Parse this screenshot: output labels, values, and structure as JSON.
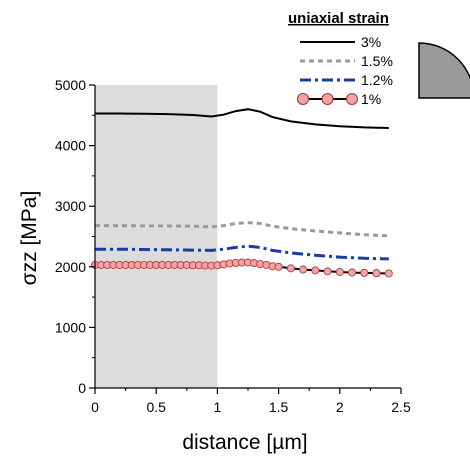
{
  "chart_data": {
    "type": "line",
    "xlabel": "distance [µm]",
    "ylabel": "σzz [MPa]",
    "xlim": [
      0,
      2.5
    ],
    "ylim": [
      0,
      5000
    ],
    "x_ticks": [
      0,
      0.5,
      1,
      1.5,
      2,
      2.5
    ],
    "x_tick_labels": [
      "0",
      "0.5",
      "1",
      "1.5",
      "2",
      "2.5"
    ],
    "y_ticks": [
      0,
      1000,
      2000,
      3000,
      4000,
      5000
    ],
    "y_tick_labels": [
      "0",
      "1000",
      "2000",
      "3000",
      "4000",
      "5000"
    ],
    "shaded_region": {
      "x": [
        0,
        1
      ],
      "color": "#dcdcdc"
    },
    "grid": false,
    "legend": {
      "title": "uniaxial strain",
      "position": "top-right"
    },
    "series": [
      {
        "name": "3%",
        "style": "solid",
        "color": "#000000",
        "x": [
          0,
          0.2,
          0.4,
          0.6,
          0.8,
          0.95,
          1.05,
          1.15,
          1.25,
          1.35,
          1.45,
          1.6,
          1.8,
          2.0,
          2.2,
          2.4
        ],
        "y": [
          4530,
          4530,
          4525,
          4520,
          4505,
          4480,
          4510,
          4570,
          4600,
          4560,
          4470,
          4400,
          4350,
          4320,
          4300,
          4290
        ]
      },
      {
        "name": "1.5%",
        "style": "dotted",
        "color": "#9a9a9a",
        "x": [
          0,
          0.2,
          0.4,
          0.6,
          0.8,
          0.95,
          1.05,
          1.15,
          1.25,
          1.35,
          1.45,
          1.6,
          1.8,
          2.0,
          2.2,
          2.4
        ],
        "y": [
          2680,
          2680,
          2675,
          2675,
          2670,
          2660,
          2680,
          2715,
          2730,
          2715,
          2670,
          2630,
          2590,
          2560,
          2530,
          2510
        ]
      },
      {
        "name": "1.2%",
        "style": "dash-dot",
        "color": "#1a3aa8",
        "x": [
          0,
          0.2,
          0.4,
          0.6,
          0.8,
          0.95,
          1.05,
          1.15,
          1.25,
          1.35,
          1.45,
          1.6,
          1.8,
          2.0,
          2.2,
          2.4
        ],
        "y": [
          2290,
          2290,
          2285,
          2280,
          2275,
          2270,
          2290,
          2320,
          2340,
          2320,
          2270,
          2230,
          2190,
          2160,
          2140,
          2130
        ]
      },
      {
        "name": "1%",
        "style": "line-markers",
        "color": "#000000",
        "marker_color": "#f2a3a3",
        "marker_edge": "#b03030",
        "x": [
          0,
          0.05,
          0.1,
          0.15,
          0.2,
          0.25,
          0.3,
          0.35,
          0.4,
          0.45,
          0.5,
          0.55,
          0.6,
          0.65,
          0.7,
          0.75,
          0.8,
          0.85,
          0.9,
          0.95,
          1.0,
          1.05,
          1.1,
          1.15,
          1.2,
          1.25,
          1.3,
          1.35,
          1.4,
          1.45,
          1.5,
          1.6,
          1.7,
          1.8,
          1.9,
          2.0,
          2.1,
          2.2,
          2.3,
          2.4
        ],
        "y": [
          2030,
          2030,
          2030,
          2030,
          2030,
          2030,
          2030,
          2030,
          2030,
          2030,
          2030,
          2030,
          2030,
          2030,
          2030,
          2030,
          2025,
          2025,
          2020,
          2020,
          2025,
          2040,
          2055,
          2065,
          2070,
          2070,
          2060,
          2045,
          2030,
          2010,
          2000,
          1975,
          1955,
          1940,
          1925,
          1915,
          1905,
          1900,
          1895,
          1890
        ]
      }
    ]
  }
}
